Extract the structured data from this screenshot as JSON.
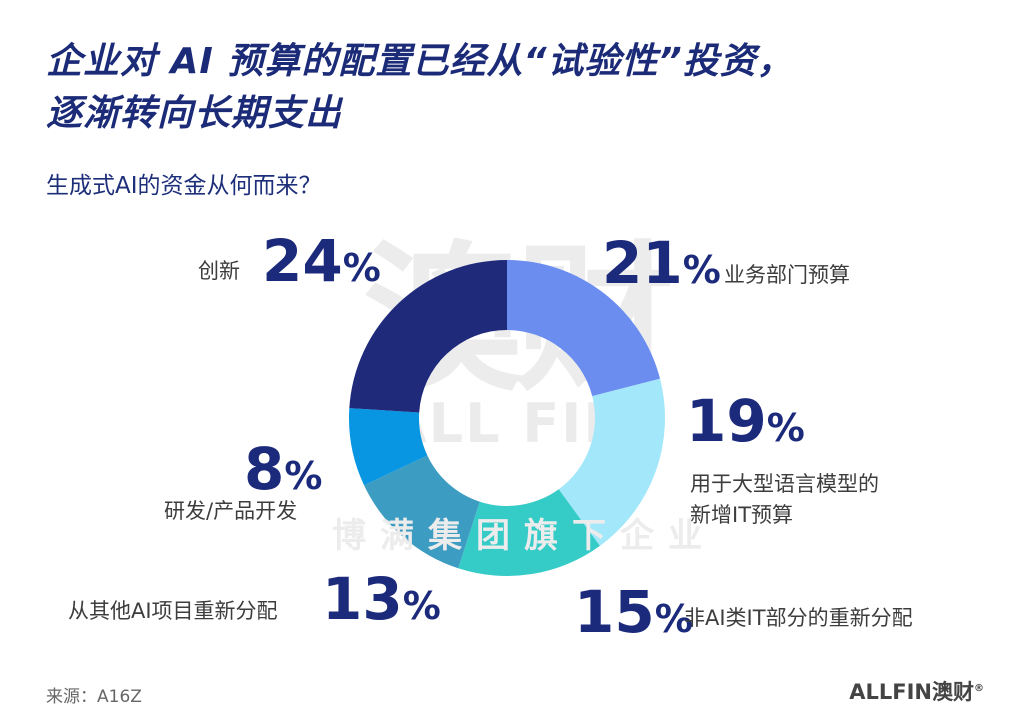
{
  "title_line1": "企业对 AI 预算的配置已经从“试验性”投资，",
  "title_line2": "逐渐转向长期支出",
  "watermark": {
    "big": "澳财",
    "allfin": "ALL FIN",
    "reg": "®",
    "group": "博满集团旗下企业"
  },
  "chart_data": {
    "type": "pie",
    "title": "生成式AI的资金从何而来？",
    "unit": "%",
    "slices": [
      {
        "label": "业务部门预算",
        "value": 21,
        "color": "#6b8df0"
      },
      {
        "label": "用于大型语言模型的新增IT预算",
        "value": 19,
        "color": "#a3e7fb"
      },
      {
        "label": "非AI类IT部分的重新分配",
        "value": 15,
        "color": "#35cbc7"
      },
      {
        "label": "从其他AI项目重新分配",
        "value": 13,
        "color": "#3d9cc1"
      },
      {
        "label": "研发/产品开发",
        "value": 8,
        "color": "#0896e3"
      },
      {
        "label": "创新",
        "value": 24,
        "color": "#1f2a7b"
      }
    ]
  },
  "labels": {
    "s0_value": "21",
    "s1_value": "19",
    "s2_value": "15",
    "s3_value": "13",
    "s4_value": "8",
    "s5_value": "24",
    "pct_symbol": "%",
    "s1_line1": "用于大型语言模型的",
    "s1_line2": "新增IT预算"
  },
  "footer": {
    "source": "来源：A16Z",
    "logo": "ALLFIN澳财",
    "logo_reg": "®"
  }
}
